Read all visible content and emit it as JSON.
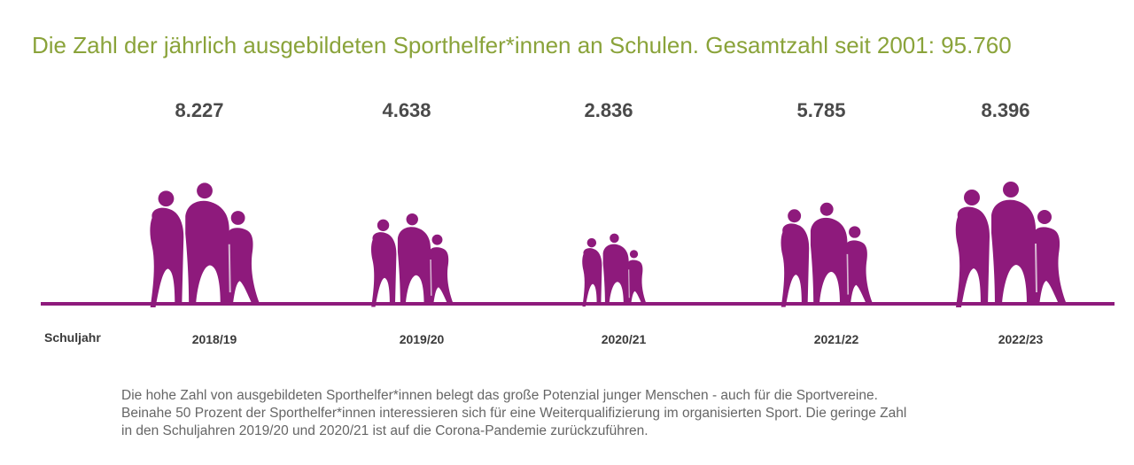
{
  "chart_data": {
    "type": "bar",
    "title": "Die Zahl der jährlich ausgebildeten Sporthelfer*innen an Schulen. Gesamtzahl seit 2001: 95.760",
    "xlabel": "Schuljahr",
    "ylabel": "",
    "categories": [
      "2018/19",
      "2019/20",
      "2020/21",
      "2021/22",
      "2022/23"
    ],
    "values": [
      8227,
      4638,
      2836,
      5785,
      8396
    ],
    "value_labels": [
      "8.227",
      "4.638",
      "2.836",
      "5.785",
      "8.396"
    ],
    "ylim": [
      0,
      8396
    ],
    "grid": false,
    "marker": "people-figure-group"
  },
  "colors": {
    "title": "#8aa33a",
    "figure": "#8e1a7c",
    "baseline": "#8e1a7c",
    "value_text": "#4a4a4a",
    "footnote_text": "#666666"
  },
  "footnote": {
    "lines": [
      "Die hohe Zahl von ausgebildeten Sporthelfer*innen belegt das große Potenzial junger Menschen - auch für die Sportvereine.",
      "Beinahe 50 Prozent der Sporthelfer*innen interessieren sich für eine Weiterqualifizierung im organisierten Sport. Die geringe Zahl",
      "in den Schuljahren 2019/20 und 2020/21 ist auf die Corona-Pandemie zurückzuführen."
    ]
  }
}
